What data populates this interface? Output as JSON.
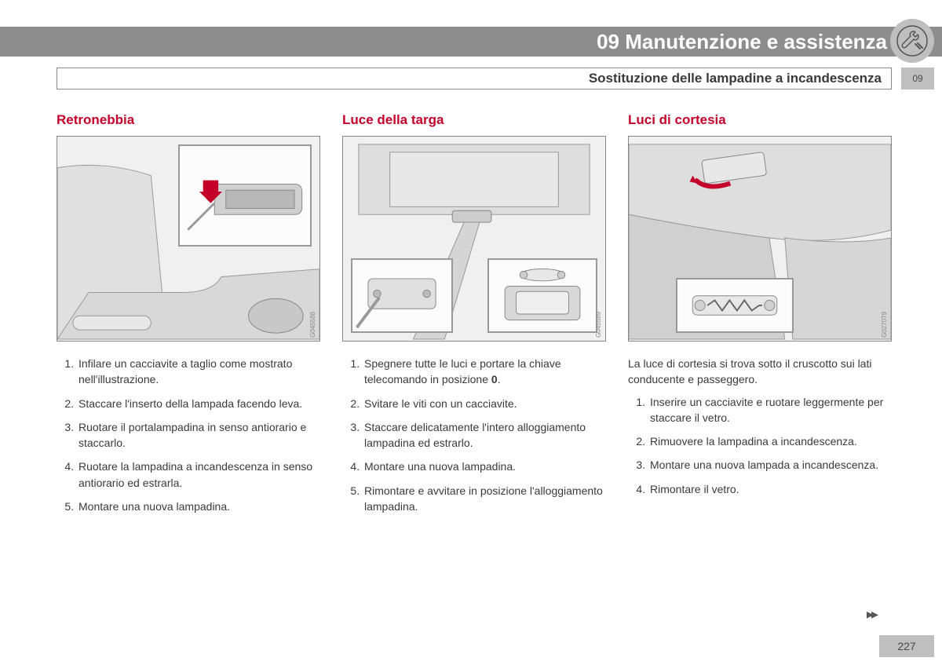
{
  "chapter": {
    "title": "09 Manutenzione e assistenza",
    "tab": "09"
  },
  "section": {
    "title": "Sostituzione delle lampadine a incandescenza"
  },
  "columns": [
    {
      "heading": "Retronebbia",
      "image_code": "G045588",
      "intro": "",
      "steps": [
        "Infilare un cacciavite a taglio come mostrato nell'illustrazione.",
        "Staccare l'inserto della lampada facendo leva.",
        "Ruotare il portalampadina in senso antiorario e staccarlo.",
        "Ruotare la lampadina a incandescenza in senso antiorario ed estrarla.",
        "Montare una nuova lampadina."
      ]
    },
    {
      "heading": "Luce della targa",
      "image_code": "G045589",
      "intro": "",
      "steps": [
        "Spegnere tutte le luci e portare la chiave telecomando in posizione 0.",
        "Svitare le viti con un cacciavite.",
        "Staccare delicatamente l'intero alloggiamento lampadina ed estrarlo.",
        "Montare una nuova lampadina.",
        "Rimontare e avvitare in posizione l'alloggiamento lampadina."
      ]
    },
    {
      "heading": "Luci di cortesia",
      "image_code": "G027079",
      "intro": "La luce di cortesia si trova sotto il cruscotto sui lati conducente e passeggero.",
      "steps": [
        "Inserire un cacciavite e ruotare leggermente per staccare il vetro.",
        "Rimuovere la lampadina a incandescenza.",
        "Montare una nuova lampada a incandescenza.",
        "Rimontare il vetro."
      ]
    }
  ],
  "page_number": "227",
  "continuation_marker": "▸▸",
  "colors": {
    "header_bg": "#8d8d8d",
    "accent": "#c4002a",
    "tab_bg": "#bfbfbf",
    "text": "#3a3a3a"
  }
}
